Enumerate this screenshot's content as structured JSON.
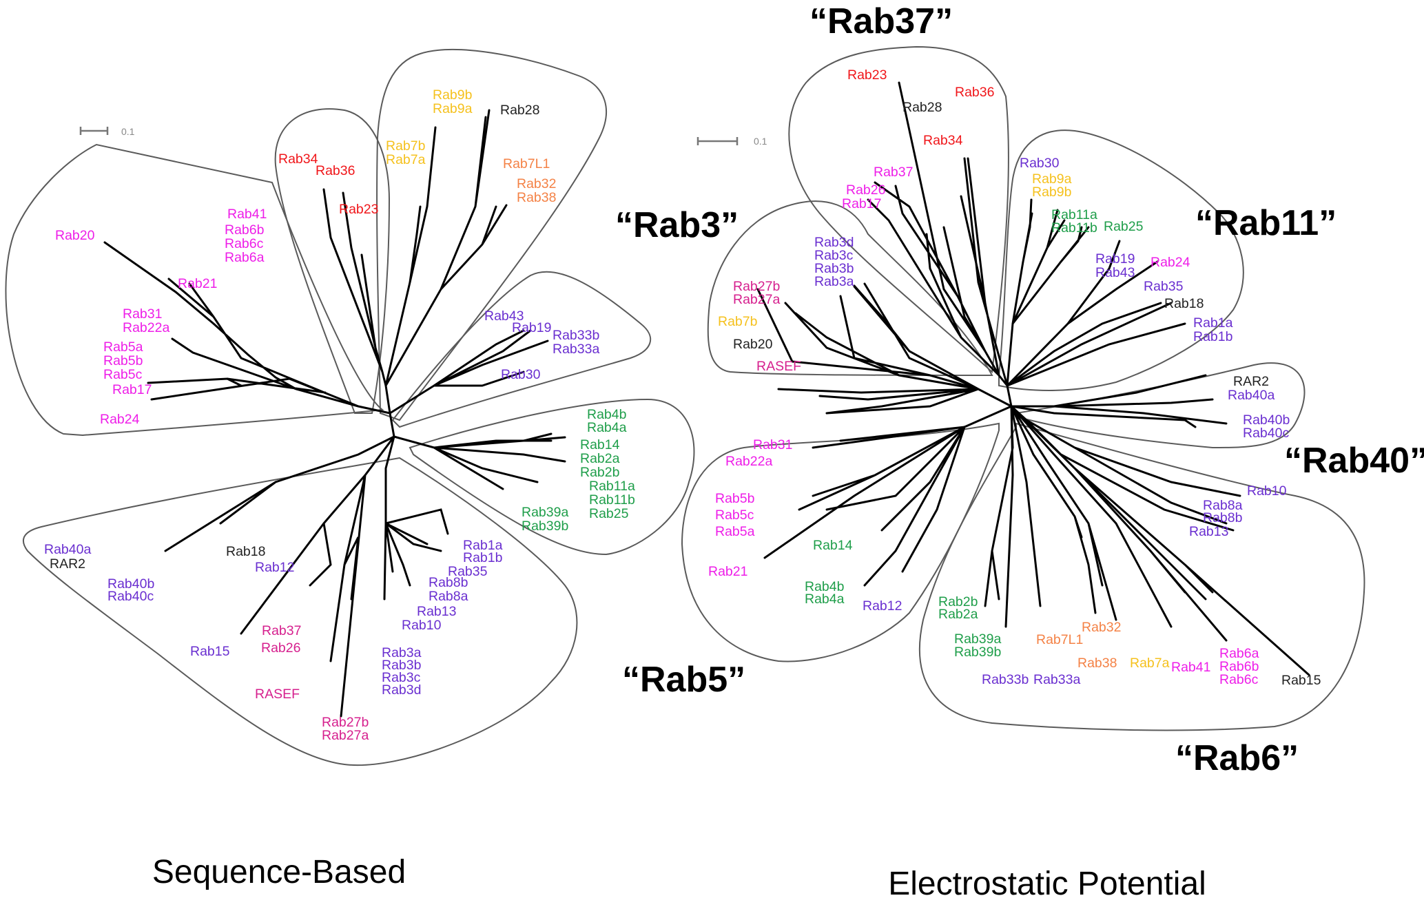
{
  "colors": {
    "black": "#222222",
    "magenta": "#ee1ee8",
    "purple": "#6a2fd0",
    "red": "#f0161a",
    "yellow": "#f5c11e",
    "orange": "#f48246",
    "green": "#1f9e4a",
    "pinkdark": "#d6208e"
  },
  "panels": [
    {
      "id": "sequence",
      "caption": "Sequence-Based",
      "scale_label": "0.1",
      "group_titles": [],
      "leaves": [
        {
          "text": "Rab20",
          "c": "magenta"
        },
        {
          "text": "Rab41",
          "c": "magenta"
        },
        {
          "text": "Rab6b",
          "c": "magenta"
        },
        {
          "text": "Rab6c",
          "c": "magenta"
        },
        {
          "text": "Rab6a",
          "c": "magenta"
        },
        {
          "text": "Rab21",
          "c": "magenta"
        },
        {
          "text": "Rab31",
          "c": "magenta"
        },
        {
          "text": "Rab22a",
          "c": "magenta"
        },
        {
          "text": "Rab5a",
          "c": "magenta"
        },
        {
          "text": "Rab5b",
          "c": "magenta"
        },
        {
          "text": "Rab5c",
          "c": "magenta"
        },
        {
          "text": "Rab17",
          "c": "magenta"
        },
        {
          "text": "Rab24",
          "c": "magenta"
        },
        {
          "text": "Rab34",
          "c": "red"
        },
        {
          "text": "Rab36",
          "c": "red"
        },
        {
          "text": "Rab23",
          "c": "red"
        },
        {
          "text": "Rab9b",
          "c": "yellow"
        },
        {
          "text": "Rab9a",
          "c": "yellow"
        },
        {
          "text": "Rab7b",
          "c": "yellow"
        },
        {
          "text": "Rab7a",
          "c": "yellow"
        },
        {
          "text": "Rab28",
          "c": "black"
        },
        {
          "text": "Rab7L1",
          "c": "orange"
        },
        {
          "text": "Rab32",
          "c": "orange"
        },
        {
          "text": "Rab38",
          "c": "orange"
        },
        {
          "text": "Rab43",
          "c": "purple"
        },
        {
          "text": "Rab19",
          "c": "purple"
        },
        {
          "text": "Rab33b",
          "c": "purple"
        },
        {
          "text": "Rab33a",
          "c": "purple"
        },
        {
          "text": "Rab30",
          "c": "purple"
        },
        {
          "text": "Rab4b",
          "c": "green"
        },
        {
          "text": "Rab4a",
          "c": "green"
        },
        {
          "text": "Rab14",
          "c": "green"
        },
        {
          "text": "Rab2a",
          "c": "green"
        },
        {
          "text": "Rab2b",
          "c": "green"
        },
        {
          "text": "Rab11a",
          "c": "green"
        },
        {
          "text": "Rab11b",
          "c": "green"
        },
        {
          "text": "Rab25",
          "c": "green"
        },
        {
          "text": "Rab39a",
          "c": "green"
        },
        {
          "text": "Rab39b",
          "c": "green"
        },
        {
          "text": "Rab40a",
          "c": "purple"
        },
        {
          "text": "RAR2",
          "c": "black"
        },
        {
          "text": "Rab18",
          "c": "black"
        },
        {
          "text": "Rab12",
          "c": "purple"
        },
        {
          "text": "Rab40b",
          "c": "purple"
        },
        {
          "text": "Rab40c",
          "c": "purple"
        },
        {
          "text": "Rab1a",
          "c": "purple"
        },
        {
          "text": "Rab1b",
          "c": "purple"
        },
        {
          "text": "Rab35",
          "c": "purple"
        },
        {
          "text": "Rab8b",
          "c": "purple"
        },
        {
          "text": "Rab8a",
          "c": "purple"
        },
        {
          "text": "Rab13",
          "c": "purple"
        },
        {
          "text": "Rab10",
          "c": "purple"
        },
        {
          "text": "Rab37",
          "c": "pinkdark"
        },
        {
          "text": "Rab26",
          "c": "pinkdark"
        },
        {
          "text": "Rab15",
          "c": "purple"
        },
        {
          "text": "RASEF",
          "c": "pinkdark"
        },
        {
          "text": "Rab3a",
          "c": "purple"
        },
        {
          "text": "Rab3b",
          "c": "purple"
        },
        {
          "text": "Rab3c",
          "c": "purple"
        },
        {
          "text": "Rab3d",
          "c": "purple"
        },
        {
          "text": "Rab27b",
          "c": "pinkdark"
        },
        {
          "text": "Rab27a",
          "c": "pinkdark"
        }
      ]
    },
    {
      "id": "electrostatic",
      "caption": "Electrostatic Potential",
      "scale_label": "0.1",
      "group_titles": [
        "“Rab37”",
        "“Rab3”",
        "“Rab11”",
        "“Rab40”",
        "“Rab5”",
        "“Rab6”"
      ],
      "leaves": [
        {
          "text": "Rab23",
          "c": "red"
        },
        {
          "text": "Rab28",
          "c": "black"
        },
        {
          "text": "Rab36",
          "c": "red"
        },
        {
          "text": "Rab34",
          "c": "red"
        },
        {
          "text": "Rab37",
          "c": "magenta"
        },
        {
          "text": "Rab26",
          "c": "magenta"
        },
        {
          "text": "Rab17",
          "c": "magenta"
        },
        {
          "text": "Rab30",
          "c": "purple"
        },
        {
          "text": "Rab9a",
          "c": "yellow"
        },
        {
          "text": "Rab9b",
          "c": "yellow"
        },
        {
          "text": "Rab11a",
          "c": "green"
        },
        {
          "text": "Rab11b",
          "c": "green"
        },
        {
          "text": "Rab25",
          "c": "green"
        },
        {
          "text": "Rab19",
          "c": "purple"
        },
        {
          "text": "Rab43",
          "c": "purple"
        },
        {
          "text": "Rab24",
          "c": "magenta"
        },
        {
          "text": "Rab35",
          "c": "purple"
        },
        {
          "text": "Rab18",
          "c": "black"
        },
        {
          "text": "Rab1a",
          "c": "purple"
        },
        {
          "text": "Rab1b",
          "c": "purple"
        },
        {
          "text": "Rab3d",
          "c": "purple"
        },
        {
          "text": "Rab3c",
          "c": "purple"
        },
        {
          "text": "Rab3b",
          "c": "purple"
        },
        {
          "text": "Rab3a",
          "c": "purple"
        },
        {
          "text": "Rab27b",
          "c": "pinkdark"
        },
        {
          "text": "Rab27a",
          "c": "pinkdark"
        },
        {
          "text": "Rab7b",
          "c": "yellow"
        },
        {
          "text": "Rab20",
          "c": "black"
        },
        {
          "text": "RASEF",
          "c": "pinkdark"
        },
        {
          "text": "RAR2",
          "c": "black"
        },
        {
          "text": "Rab40a",
          "c": "purple"
        },
        {
          "text": "Rab40b",
          "c": "purple"
        },
        {
          "text": "Rab40c",
          "c": "purple"
        },
        {
          "text": "Rab31",
          "c": "magenta"
        },
        {
          "text": "Rab22a",
          "c": "magenta"
        },
        {
          "text": "Rab5b",
          "c": "magenta"
        },
        {
          "text": "Rab5c",
          "c": "magenta"
        },
        {
          "text": "Rab5a",
          "c": "magenta"
        },
        {
          "text": "Rab14",
          "c": "green"
        },
        {
          "text": "Rab21",
          "c": "magenta"
        },
        {
          "text": "Rab4b",
          "c": "green"
        },
        {
          "text": "Rab4a",
          "c": "green"
        },
        {
          "text": "Rab12",
          "c": "purple"
        },
        {
          "text": "Rab10",
          "c": "purple"
        },
        {
          "text": "Rab8a",
          "c": "purple"
        },
        {
          "text": "Rab8b",
          "c": "purple"
        },
        {
          "text": "Rab13",
          "c": "purple"
        },
        {
          "text": "Rab2b",
          "c": "green"
        },
        {
          "text": "Rab2a",
          "c": "green"
        },
        {
          "text": "Rab7L1",
          "c": "orange"
        },
        {
          "text": "Rab32",
          "c": "orange"
        },
        {
          "text": "Rab39a",
          "c": "green"
        },
        {
          "text": "Rab39b",
          "c": "green"
        },
        {
          "text": "Rab38",
          "c": "orange"
        },
        {
          "text": "Rab7a",
          "c": "yellow"
        },
        {
          "text": "Rab41",
          "c": "magenta"
        },
        {
          "text": "Rab6a",
          "c": "magenta"
        },
        {
          "text": "Rab6b",
          "c": "magenta"
        },
        {
          "text": "Rab6c",
          "c": "magenta"
        },
        {
          "text": "Rab33b",
          "c": "purple"
        },
        {
          "text": "Rab33a",
          "c": "purple"
        },
        {
          "text": "Rab15",
          "c": "black"
        }
      ]
    }
  ]
}
